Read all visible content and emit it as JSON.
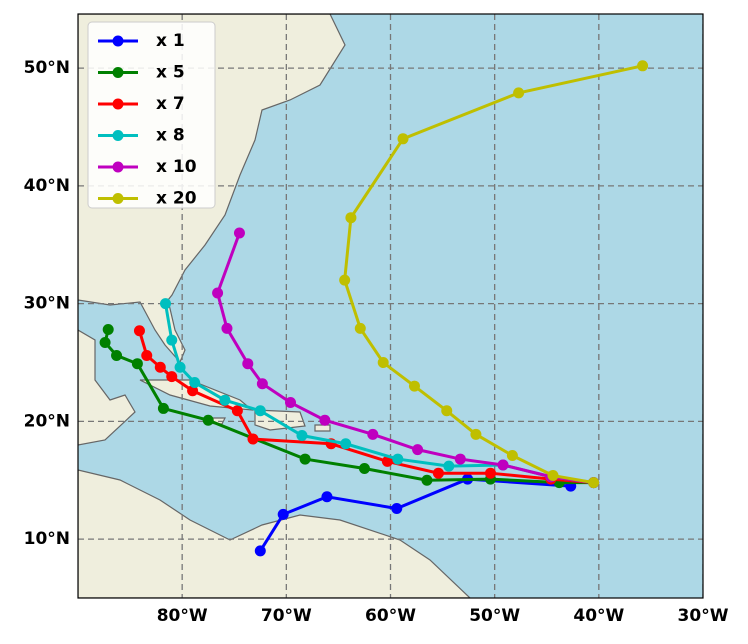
{
  "chart_data": {
    "type": "line",
    "xlim": [
      -90,
      -30
    ],
    "ylim": [
      5,
      54.6
    ],
    "xticks": [
      {
        "value": -80,
        "label": "80°W"
      },
      {
        "value": -70,
        "label": "70°W"
      },
      {
        "value": -60,
        "label": "60°W"
      },
      {
        "value": -50,
        "label": "50°W"
      },
      {
        "value": -40,
        "label": "40°W"
      },
      {
        "value": -30,
        "label": "30°W"
      }
    ],
    "yticks": [
      {
        "value": 10,
        "label": "10°N"
      },
      {
        "value": 20,
        "label": "20°N"
      },
      {
        "value": 30,
        "label": "30°N"
      },
      {
        "value": 40,
        "label": "40°N"
      },
      {
        "value": 50,
        "label": "50°N"
      }
    ],
    "grid": true,
    "legend": "upper left",
    "series": [
      {
        "name": "x 1",
        "color": "#0000ff",
        "x": [
          -72.5,
          -70.3,
          -66.1,
          -59.4,
          -52.6,
          -42.7
        ],
        "values": [
          9.0,
          12.1,
          13.6,
          12.6,
          15.1,
          14.5
        ]
      },
      {
        "name": "x 5",
        "color": "#008000",
        "x": [
          -87.1,
          -87.4,
          -86.3,
          -84.3,
          -81.8,
          -77.5,
          -68.2,
          -62.5,
          -56.5,
          -50.4,
          -43.8,
          -40.5
        ],
        "values": [
          27.8,
          26.7,
          25.6,
          24.9,
          21.1,
          20.1,
          16.8,
          16.0,
          15.0,
          15.1,
          14.8,
          14.8
        ]
      },
      {
        "name": "x 7",
        "color": "#ff0000",
        "x": [
          -84.1,
          -83.4,
          -82.1,
          -81.0,
          -79.0,
          -74.7,
          -73.2,
          -65.7,
          -60.3,
          -55.4,
          -50.4,
          -44.6,
          -40.5
        ],
        "values": [
          27.7,
          25.6,
          24.6,
          23.8,
          22.6,
          20.9,
          18.5,
          18.1,
          16.6,
          15.6,
          15.6,
          15.1,
          14.8
        ]
      },
      {
        "name": "x 8",
        "color": "#00bfbf",
        "x": [
          -81.6,
          -81.0,
          -80.2,
          -78.8,
          -75.9,
          -72.5,
          -68.5,
          -64.3,
          -59.3,
          -54.4,
          -49.2,
          -44.6,
          -40.5
        ],
        "values": [
          30.0,
          26.9,
          24.6,
          23.3,
          21.8,
          20.9,
          18.8,
          18.1,
          16.8,
          16.2,
          16.3,
          15.3,
          14.8
        ]
      },
      {
        "name": "x 10",
        "color": "#bf00bf",
        "x": [
          -74.5,
          -76.6,
          -75.7,
          -73.7,
          -72.3,
          -69.6,
          -66.3,
          -61.7,
          -57.4,
          -53.3,
          -49.2,
          -44.6,
          -40.5
        ],
        "values": [
          36.0,
          30.9,
          27.9,
          24.9,
          23.2,
          21.6,
          20.1,
          18.9,
          17.6,
          16.8,
          16.3,
          15.3,
          14.8
        ]
      },
      {
        "name": "x 20",
        "color": "#bfbf00",
        "x": [
          -35.8,
          -47.7,
          -58.8,
          -63.8,
          -64.4,
          -62.9,
          -60.7,
          -57.7,
          -54.6,
          -51.8,
          -48.3,
          -44.4,
          -40.5
        ],
        "values": [
          50.2,
          47.9,
          44.0,
          37.3,
          32.0,
          27.9,
          25.0,
          23.0,
          20.9,
          18.9,
          17.1,
          15.4,
          14.8
        ]
      }
    ]
  }
}
